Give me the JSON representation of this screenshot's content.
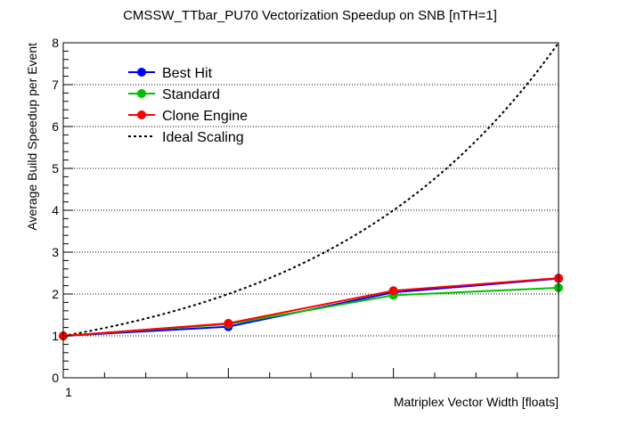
{
  "chart_data": {
    "type": "line",
    "title": "CMSSW_TTbar_PU70 Vectorization Speedup on SNB [nTH=1]",
    "xlabel": "Matriplex Vector Width [floats]",
    "ylabel": "Average Build Speedup per Event",
    "x_scale": "log2",
    "xlim": [
      1,
      8
    ],
    "ylim": [
      0,
      8
    ],
    "x_tick_labels": [
      "1"
    ],
    "y_ticks": [
      0,
      1,
      2,
      3,
      4,
      5,
      6,
      7,
      8
    ],
    "grid": "horizontal-dotted",
    "legend_position": "top-left",
    "x": [
      1,
      2,
      4,
      8
    ],
    "series": [
      {
        "name": "Best Hit",
        "color": "#0000ff",
        "marker": "circle",
        "values": [
          1.0,
          1.22,
          2.04,
          2.37
        ]
      },
      {
        "name": "Standard",
        "color": "#00c000",
        "marker": "circle",
        "values": [
          1.0,
          1.28,
          1.97,
          2.15
        ]
      },
      {
        "name": "Clone Engine",
        "color": "#ff0000",
        "marker": "circle",
        "values": [
          1.0,
          1.3,
          2.08,
          2.38
        ]
      },
      {
        "name": "Ideal Scaling",
        "color": "#000000",
        "style": "dotted",
        "function": "y = x"
      }
    ]
  }
}
